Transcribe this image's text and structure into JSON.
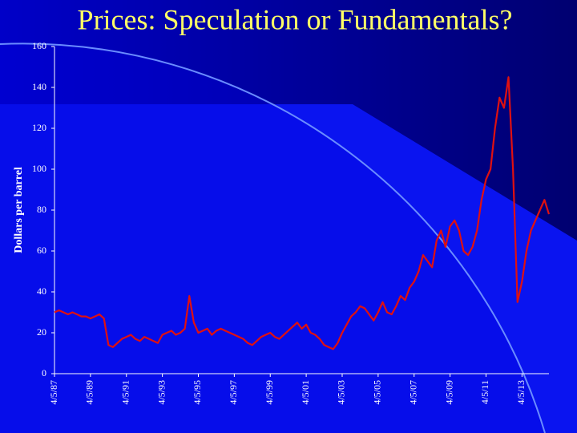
{
  "chart_data": {
    "type": "line",
    "title": "Prices: Speculation or Fundamentals?",
    "y_label": "Dollars per barrel",
    "categories": [
      "4/5/87",
      null,
      null,
      null,
      null,
      null,
      null,
      null,
      "4/5/89",
      null,
      null,
      null,
      null,
      null,
      null,
      null,
      "4/5/91",
      null,
      null,
      null,
      null,
      null,
      null,
      null,
      "4/5/93",
      null,
      null,
      null,
      null,
      null,
      null,
      null,
      "4/5/95",
      null,
      null,
      null,
      null,
      null,
      null,
      null,
      "4/5/97",
      null,
      null,
      null,
      null,
      null,
      null,
      null,
      "4/5/99",
      null,
      null,
      null,
      null,
      null,
      null,
      null,
      "4/5/01",
      null,
      null,
      null,
      null,
      null,
      null,
      null,
      "4/5/03",
      null,
      null,
      null,
      null,
      null,
      null,
      null,
      "4/5/05",
      null,
      null,
      null,
      null,
      null,
      null,
      null,
      "4/5/07",
      null,
      null,
      null,
      null,
      null,
      null,
      null,
      "4/5/09",
      null,
      null,
      null,
      null,
      null,
      null,
      null,
      "4/5/11",
      null,
      null,
      null,
      null,
      null,
      null,
      null,
      "4/5/13",
      null,
      null,
      null,
      null,
      null,
      null
    ],
    "values": [
      30,
      31,
      30,
      29,
      30,
      29,
      28,
      28,
      27,
      28,
      29,
      27,
      14,
      13,
      15,
      17,
      18,
      19,
      17,
      16,
      18,
      17,
      16,
      15,
      19,
      20,
      21,
      19,
      20,
      22,
      38,
      25,
      20,
      21,
      22,
      19,
      21,
      22,
      21,
      20,
      19,
      18,
      17,
      15,
      14,
      16,
      18,
      19,
      20,
      18,
      17,
      19,
      21,
      23,
      25,
      22,
      24,
      20,
      19,
      17,
      14,
      13,
      12,
      15,
      20,
      24,
      28,
      30,
      33,
      32,
      29,
      26,
      30,
      35,
      30,
      29,
      33,
      38,
      36,
      42,
      45,
      50,
      58,
      55,
      52,
      65,
      70,
      62,
      72,
      75,
      70,
      60,
      58,
      62,
      70,
      85,
      95,
      100,
      120,
      135,
      130,
      145,
      100,
      35,
      45,
      60,
      70,
      75,
      80,
      85,
      78
    ],
    "color": "#e01010",
    "ylim": [
      0,
      160
    ],
    "yticks": [
      0,
      20,
      40,
      60,
      80,
      100,
      120,
      140,
      160
    ]
  }
}
